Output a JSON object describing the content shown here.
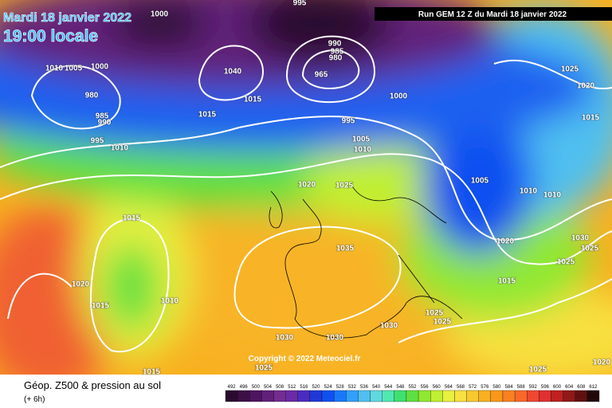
{
  "header": {
    "date": "Mardi 18 janvier 2022",
    "time": "19:00 locale",
    "run": "Run GEM 12 Z du Mardi 18 janvier 2022"
  },
  "map": {
    "copyright": "Copyright © 2022 Meteociel.fr",
    "isobar_labels": [
      1000,
      995,
      1010,
      1005,
      1000,
      980,
      985,
      990,
      995,
      1010,
      1015,
      1015,
      990,
      985,
      980,
      965,
      1040,
      1000,
      995,
      1005,
      1010,
      1020,
      1025,
      1035,
      1005,
      1010,
      1010,
      1020,
      1030,
      1025,
      1025,
      1015,
      1025,
      1020,
      1015,
      1015,
      1020,
      1015,
      1010,
      1030,
      1030,
      1030,
      1025,
      1025,
      1025,
      1015,
      1025,
      1020
    ]
  },
  "footer": {
    "title": "Géop. Z500 & pression au sol",
    "lead": "(+ 6h)"
  },
  "colorbar": {
    "labels": [
      492,
      496,
      500,
      504,
      508,
      512,
      516,
      520,
      524,
      528,
      532,
      536,
      540,
      544,
      548,
      552,
      556,
      560,
      564,
      568,
      572,
      576,
      580,
      584,
      588,
      592,
      596,
      600,
      604,
      608,
      612
    ],
    "colors": [
      "#2a0a2e",
      "#3c0f46",
      "#4e1460",
      "#62207a",
      "#742c90",
      "#6a2aa6",
      "#4a2cc0",
      "#2038d8",
      "#1050f0",
      "#1a78f8",
      "#30a0f8",
      "#50c0f0",
      "#60d8e0",
      "#50e8b0",
      "#40e070",
      "#60e040",
      "#90e830",
      "#c0f030",
      "#e8f040",
      "#f8e040",
      "#f8c830",
      "#f8b020",
      "#f89818",
      "#f88020",
      "#f86828",
      "#f04830",
      "#e03030",
      "#c02020",
      "#901818",
      "#601010",
      "#200808"
    ]
  }
}
